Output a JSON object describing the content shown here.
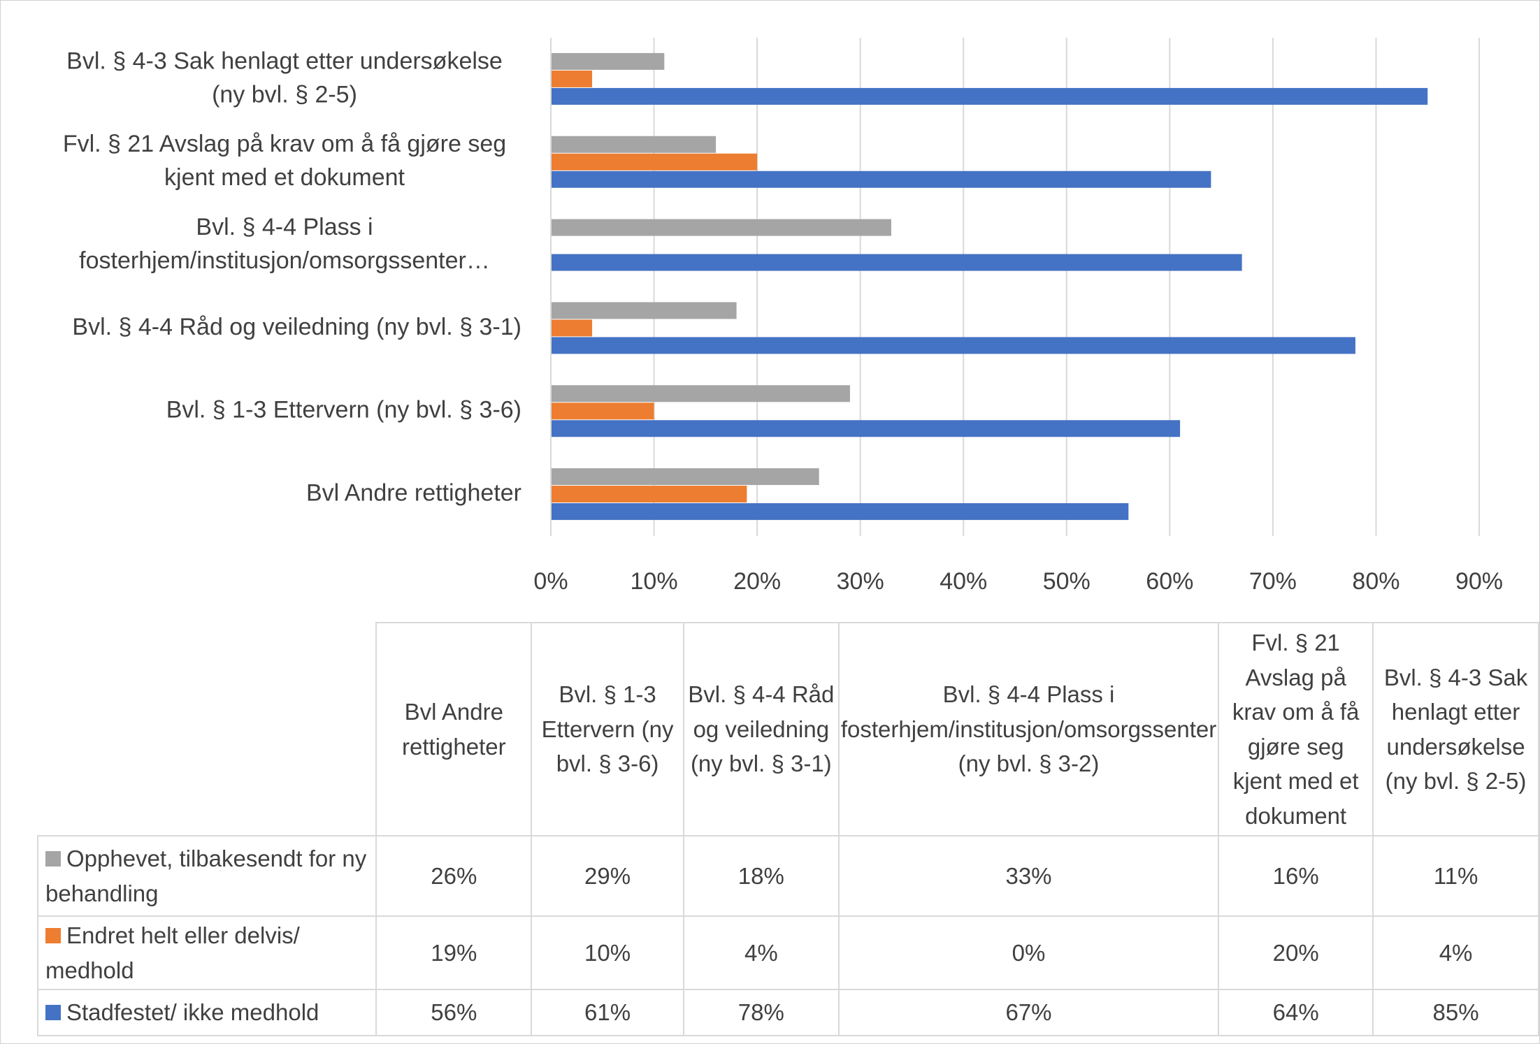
{
  "chart_data": {
    "type": "bar",
    "orientation": "horizontal",
    "categories": [
      "Bvl Andre rettigheter",
      "Bvl. § 1-3 Ettervern (ny bvl. § 3-6)",
      "Bvl. § 4-4 Råd og veiledning (ny bvl. § 3-1)",
      "Bvl. § 4-4 Plass i fosterhjem/institusjon/omsorgssenter (ny bvl. § 3-2)",
      "Fvl. § 21 Avslag på krav om å få gjøre seg kjent med et dokument",
      "Bvl. § 4-3 Sak henlagt etter undersøkelse (ny bvl. § 2-5)"
    ],
    "axis_labels": [
      [
        "Bvl Andre rettigheter"
      ],
      [
        "Bvl. § 1-3 Ettervern (ny bvl. § 3-6)"
      ],
      [
        "Bvl. § 4-4 Råd og veiledning (ny bvl. § 3-1)"
      ],
      [
        "Bvl. § 4-4 Plass i",
        "fosterhjem/institusjon/omsorgssenter…"
      ],
      [
        "Fvl. § 21 Avslag på krav om å få gjøre seg",
        "kjent med et dokument"
      ],
      [
        "Bvl. § 4-3 Sak henlagt etter undersøkelse",
        "(ny bvl. § 2-5)"
      ]
    ],
    "series": [
      {
        "name": "Opphevet, tilbakesendt for ny behandling",
        "color": "#a5a5a5",
        "values": [
          26,
          29,
          18,
          33,
          16,
          11
        ],
        "value_labels": [
          "26%",
          "29%",
          "18%",
          "33%",
          "16%",
          "11%"
        ]
      },
      {
        "name": "Endret helt eller delvis/ medhold",
        "color": "#ed7d31",
        "values": [
          19,
          10,
          4,
          0,
          20,
          4
        ],
        "value_labels": [
          "19%",
          "10%",
          "4%",
          "0%",
          "20%",
          "4%"
        ]
      },
      {
        "name": "Stadfestet/ ikke medhold",
        "color": "#4472c4",
        "values": [
          56,
          61,
          78,
          67,
          64,
          85
        ],
        "value_labels": [
          "56%",
          "61%",
          "78%",
          "67%",
          "64%",
          "85%"
        ]
      }
    ],
    "xlim": [
      0,
      90
    ],
    "xticks": [
      {
        "value": 0,
        "label": "0%"
      },
      {
        "value": 10,
        "label": "10%"
      },
      {
        "value": 20,
        "label": "20%"
      },
      {
        "value": 30,
        "label": "30%"
      },
      {
        "value": 40,
        "label": "40%"
      },
      {
        "value": 50,
        "label": "50%"
      },
      {
        "value": 60,
        "label": "60%"
      },
      {
        "value": 70,
        "label": "70%"
      },
      {
        "value": 80,
        "label": "80%"
      },
      {
        "value": 90,
        "label": "90%"
      }
    ],
    "grid": true,
    "data_table": true
  }
}
